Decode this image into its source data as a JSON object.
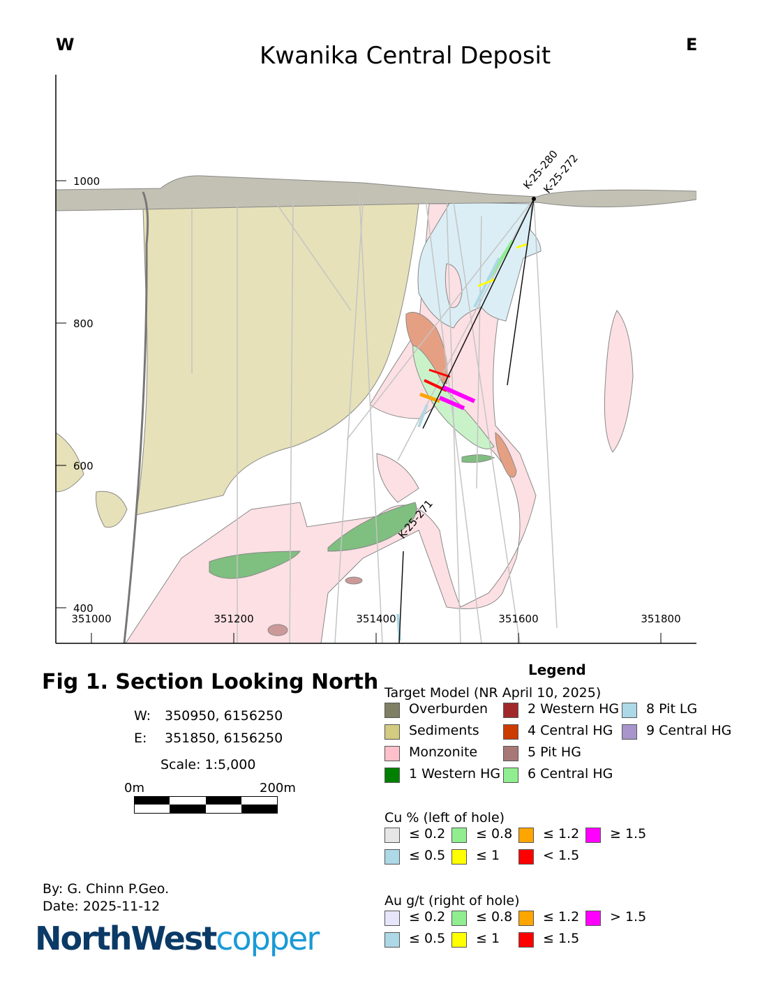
{
  "title": "Kwanika Central Deposit",
  "compass": {
    "west": "W",
    "east": "E"
  },
  "axes": {
    "x_ticks": [
      "351000",
      "351200",
      "351400",
      "351600",
      "351800"
    ],
    "y_ticks": [
      "1000",
      "800",
      "600",
      "400"
    ]
  },
  "drill_holes": [
    {
      "name": "K-25-280"
    },
    {
      "name": "K-25-272"
    },
    {
      "name": "K-25-271"
    }
  ],
  "fig_title": "Fig 1. Section Looking North",
  "section_ends": [
    {
      "label": "W:",
      "coords": "350950, 6156250"
    },
    {
      "label": "E:",
      "coords": "351850, 6156250"
    }
  ],
  "scale_text": "Scale: 1:5,000",
  "scale_bar": {
    "start": "0m",
    "end": "200m"
  },
  "author": "By: G. Chinn P.Geo.",
  "date": "Date: 2025-11-12",
  "logo": {
    "part1": "NorthWest",
    "part2": "copper",
    "color1": "#0b3a66",
    "color2": "#1a9ad6"
  },
  "legend": {
    "title": "Legend",
    "target_model": {
      "heading": "Target Model (NR April 10, 2025)",
      "items": [
        {
          "label": "Overburden",
          "color": "#7f7f64"
        },
        {
          "label": "Sediments",
          "color": "#d2cb80"
        },
        {
          "label": "Monzonite",
          "color": "#ffc0cb"
        },
        {
          "label": "1 Western HG",
          "color": "#008000"
        },
        {
          "label": "2 Western HG",
          "color": "#a0282a"
        },
        {
          "label": "4 Central HG",
          "color": "#cc3b00"
        },
        {
          "label": "5 Pit HG",
          "color": "#a87876"
        },
        {
          "label": "6 Central HG",
          "color": "#90ee90"
        },
        {
          "label": "8 Pit LG",
          "color": "#add8e6"
        },
        {
          "label": "9 Central HG",
          "color": "#a995cc"
        }
      ]
    },
    "cu": {
      "heading": "Cu % (left of hole)",
      "items": [
        {
          "label": "≤ 0.2",
          "color": "#e6e6e6"
        },
        {
          "label": "≤ 0.5",
          "color": "#add8e6"
        },
        {
          "label": "≤ 0.8",
          "color": "#90ee90"
        },
        {
          "label": "≤ 1",
          "color": "#ffff00"
        },
        {
          "label": "≤ 1.2",
          "color": "#ffa500"
        },
        {
          "label": "< 1.5",
          "color": "#ff0000"
        },
        {
          "label": "≥ 1.5",
          "color": "#ff00ff"
        }
      ]
    },
    "au": {
      "heading": "Au g/t (right of hole)",
      "items": [
        {
          "label": "≤ 0.2",
          "color": "#e6e6fa"
        },
        {
          "label": "≤ 0.5",
          "color": "#add8e6"
        },
        {
          "label": "≤ 0.8",
          "color": "#90ee90"
        },
        {
          "label": "≤ 1",
          "color": "#ffff00"
        },
        {
          "label": "≤ 1.2",
          "color": "#ffa500"
        },
        {
          "label": "≤ 1.5",
          "color": "#ff0000"
        },
        {
          "label": "> 1.5",
          "color": "#ff00ff"
        }
      ]
    }
  }
}
